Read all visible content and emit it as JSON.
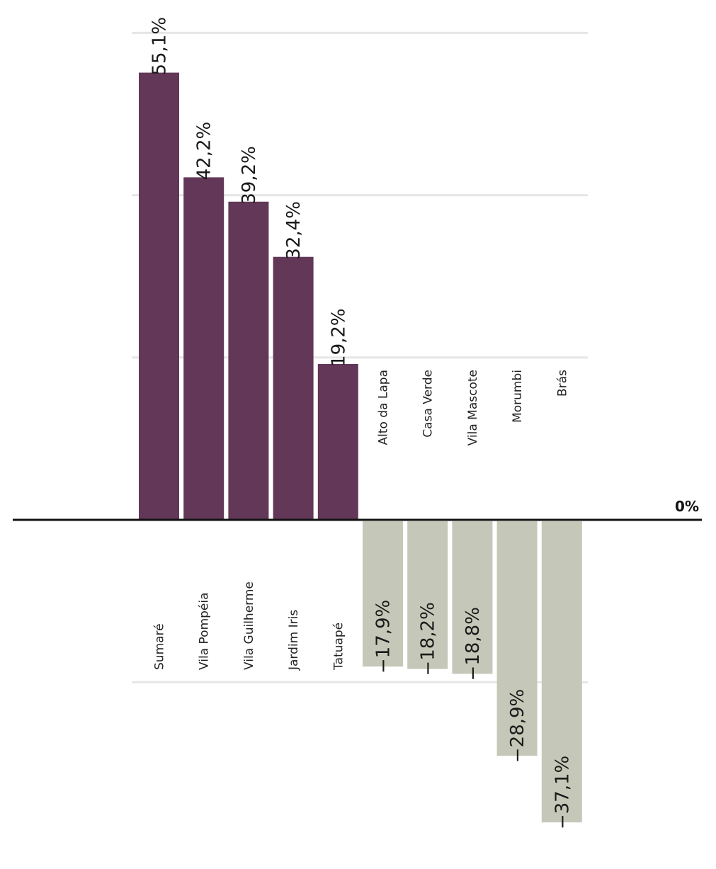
{
  "chart_data": {
    "type": "bar",
    "categories": [
      "Sumaré",
      "Vila Pompéia",
      "Vila Guilherme",
      "Jardim Iris",
      "Tatuapé",
      "Alto da Lapa",
      "Casa Verde",
      "Vila Mascote",
      "Morumbi",
      "Brás"
    ],
    "values": [
      55.1,
      42.2,
      39.2,
      32.4,
      19.2,
      -17.9,
      -18.2,
      -18.8,
      -28.9,
      -37.1
    ],
    "value_labels": [
      "55,1%",
      "42,2%",
      "39,2%",
      "32,4%",
      "19,2%",
      "−17,9%",
      "−18,2%",
      "−18,8%",
      "−28,9%",
      "−37,1%"
    ],
    "zero_label": "0%",
    "gridlines": [
      60,
      40,
      20,
      -20
    ],
    "grid": true,
    "ylim": [
      -40,
      60
    ],
    "orientation": "vertical bars, labels rotated 90°",
    "colors": {
      "positive": "#623757",
      "negative": "#c5c8b8",
      "zero_line": "#111111",
      "grid": "#e6e6e6"
    }
  }
}
